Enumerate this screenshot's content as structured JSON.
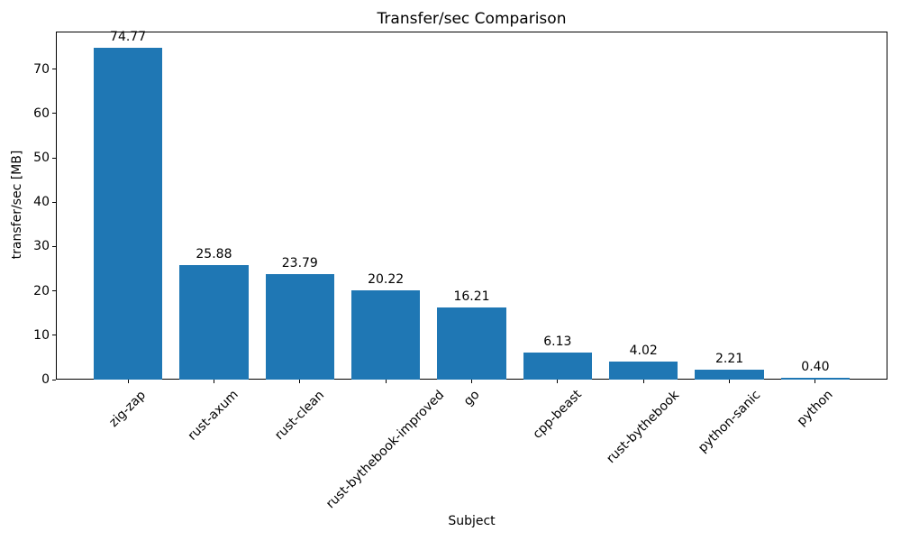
{
  "chart_data": {
    "type": "bar",
    "title": "Transfer/sec Comparison",
    "xlabel": "Subject",
    "ylabel": "transfer/sec [MB]",
    "categories": [
      "zig-zap",
      "rust-axum",
      "rust-clean",
      "rust-bythebook-improved",
      "go",
      "cpp-beast",
      "rust-bythebook",
      "python-sanic",
      "python"
    ],
    "values": [
      74.77,
      25.88,
      23.79,
      20.22,
      16.21,
      6.13,
      4.02,
      2.21,
      0.4
    ],
    "bar_labels": [
      "74.77",
      "25.88",
      "23.79",
      "20.22",
      "16.21",
      "6.13",
      "4.02",
      "2.21",
      "0.40"
    ],
    "yticks": [
      0,
      10,
      20,
      30,
      40,
      50,
      60,
      70
    ],
    "ylim": [
      0,
      78.5
    ],
    "bar_color": "#1f77b4",
    "text_color": "#000000",
    "spine_color": "#000000",
    "xtick_label_rotation": 45,
    "grid": false,
    "legend_position": "none"
  }
}
